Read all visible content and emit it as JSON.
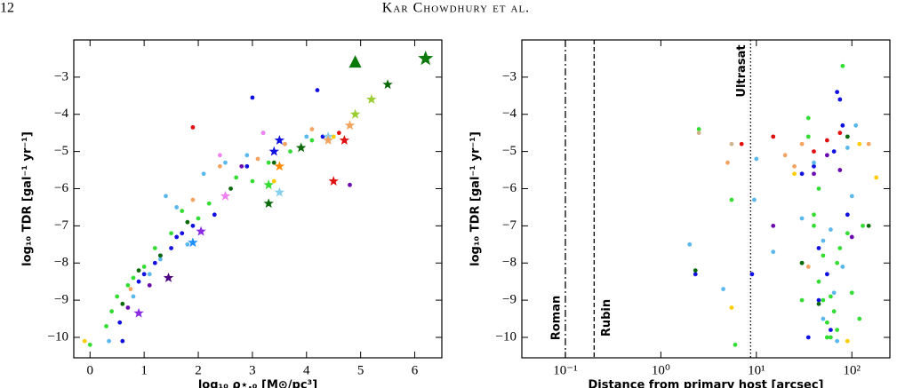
{
  "page": {
    "number": "12",
    "running_head": "Kar Chowdhury et al."
  },
  "chart_data": [
    {
      "type": "scatter",
      "xlabel": "log₁₀ ρ⋆,₀ [M⊙/pc³]",
      "ylabel": "log₁₀ TDR [gal⁻¹ yr⁻¹]",
      "xlim": [
        -0.3,
        6.5
      ],
      "ylim": [
        -10.55,
        -2.0
      ],
      "xticks": [
        0,
        1,
        2,
        3,
        4,
        5,
        6
      ],
      "yticks": [
        {
          "value": -10,
          "label": "−10"
        },
        {
          "value": -9,
          "label": "−9"
        },
        {
          "value": -8,
          "label": "−8"
        },
        {
          "value": -7,
          "label": "−7"
        },
        {
          "value": -6,
          "label": "−6"
        },
        {
          "value": -5,
          "label": "−5"
        },
        {
          "value": -4,
          "label": "−4"
        },
        {
          "value": -3,
          "label": "−3"
        }
      ],
      "series": [
        {
          "color": "#1010e0",
          "marker": "dot",
          "x": [
            0.55,
            0.6,
            0.9,
            1.0,
            1.2,
            1.3,
            1.5,
            1.6,
            1.7,
            1.9,
            2.3,
            2.9,
            3.0,
            4.2,
            4.3
          ],
          "values": [
            -9.6,
            -10.1,
            -8.5,
            -8.3,
            -8.0,
            -7.8,
            -7.6,
            -7.3,
            -7.2,
            -7.0,
            -6.7,
            -5.4,
            -3.55,
            -3.35,
            -4.6
          ]
        },
        {
          "color": "#5bb8ec",
          "marker": "dot",
          "x": [
            0.35,
            0.8,
            1.1,
            1.3,
            1.4,
            1.6,
            1.8,
            2.1,
            2.5,
            2.9,
            3.2,
            3.6,
            4.0
          ],
          "values": [
            -10.1,
            -8.9,
            -8.3,
            -7.9,
            -6.2,
            -6.5,
            -7.5,
            -5.6,
            -5.3,
            -5.1,
            -4.5,
            -4.8,
            -4.6
          ]
        },
        {
          "color": "#33dd33",
          "marker": "dot",
          "x": [
            0.0,
            0.3,
            0.4,
            0.5,
            0.7,
            0.8,
            1.0,
            1.2,
            1.5,
            1.7,
            2.0,
            2.2,
            2.7,
            3.0,
            3.3,
            3.7,
            4.1
          ],
          "values": [
            -10.2,
            -9.7,
            -9.3,
            -8.9,
            -8.6,
            -8.4,
            -8.1,
            -7.6,
            -7.2,
            -6.6,
            -6.8,
            -6.4,
            -5.7,
            -5.8,
            -5.3,
            -5.0,
            -4.7
          ]
        },
        {
          "color": "#0a6a0a",
          "marker": "dot",
          "x": [
            0.6,
            0.9,
            1.3,
            1.8,
            2.6,
            3.4
          ],
          "values": [
            -9.1,
            -8.2,
            -7.8,
            -6.9,
            -6.0,
            -5.3
          ]
        },
        {
          "color": "#6a0ab0",
          "marker": "dot",
          "x": [
            0.7,
            1.1,
            2.8,
            4.8
          ],
          "values": [
            -9.2,
            -8.6,
            -5.4,
            -5.9
          ]
        },
        {
          "color": "#f4a460",
          "marker": "dot",
          "x": [
            0.75,
            1.9,
            2.4,
            3.1,
            3.6,
            4.1
          ],
          "values": [
            -8.7,
            -6.3,
            -5.4,
            -5.2,
            -4.8,
            -4.4
          ]
        },
        {
          "color": "#ffcc00",
          "marker": "dot",
          "x": [
            -0.1,
            3.4,
            4.5
          ],
          "values": [
            -10.1,
            -5.8,
            -4.6
          ]
        },
        {
          "color": "#e01010",
          "marker": "dot",
          "x": [
            1.9,
            4.6
          ],
          "values": [
            -4.35,
            -4.5
          ]
        },
        {
          "color": "#ee82ee",
          "marker": "dot",
          "x": [
            3.2,
            2.4
          ],
          "values": [
            -4.5,
            -5.1
          ]
        },
        {
          "marker": "star",
          "colors": [
            "#8a2be2",
            "#4b0082",
            "#8a2be2",
            "#1e90ff",
            "#ee82ee",
            "#0a6a0a",
            "#33dd33",
            "#87ceeb",
            "#ff8c00",
            "#1010e0",
            "#1010e0",
            "#0a6a0a",
            "#87ceeb",
            "#f4a460",
            "#e01010",
            "#e01010",
            "#f4a460",
            "#9acd32",
            "#9acd32",
            "#0a6a0a"
          ],
          "x": [
            0.9,
            1.45,
            2.05,
            1.9,
            2.5,
            3.3,
            3.3,
            3.5,
            3.5,
            3.5,
            3.4,
            3.9,
            4.4,
            4.4,
            4.5,
            4.7,
            4.8,
            4.9,
            5.2,
            5.5
          ],
          "values": [
            -9.35,
            -8.4,
            -7.15,
            -7.45,
            -6.2,
            -6.4,
            -5.9,
            -6.1,
            -5.4,
            -4.7,
            -5.0,
            -4.9,
            -4.6,
            -4.7,
            -5.8,
            -4.7,
            -4.3,
            -4.0,
            -3.6,
            -3.2
          ]
        },
        {
          "color": "#0a7a0a",
          "marker": "big-star",
          "x": [
            6.2
          ],
          "values": [
            -2.5
          ]
        },
        {
          "color": "#0a7a0a",
          "marker": "triangle",
          "x": [
            4.9
          ],
          "values": [
            -2.6
          ]
        }
      ]
    },
    {
      "type": "scatter",
      "xscale": "log",
      "xlabel": "Distance from primary host [arcsec]",
      "ylabel": "log₁₀ TDR [gal⁻¹ yr⁻¹]",
      "xlim": [
        0.035,
        250
      ],
      "ylim": [
        -10.55,
        -2.0
      ],
      "xticks": [
        {
          "value": 0.1,
          "label": "10⁻¹"
        },
        {
          "value": 1,
          "label": "10⁰"
        },
        {
          "value": 10,
          "label": "10¹"
        },
        {
          "value": 100,
          "label": "10²"
        }
      ],
      "yticks": [
        {
          "value": -10,
          "label": "−10"
        },
        {
          "value": -9,
          "label": "−9"
        },
        {
          "value": -8,
          "label": "−8"
        },
        {
          "value": -7,
          "label": "−7"
        },
        {
          "value": -6,
          "label": "−6"
        },
        {
          "value": -5,
          "label": "−5"
        },
        {
          "value": -4,
          "label": "−4"
        },
        {
          "value": -3,
          "label": "−3"
        }
      ],
      "vlines": [
        {
          "x": 0.1,
          "style": "dashdot",
          "label": "Roman"
        },
        {
          "x": 0.2,
          "style": "dashed",
          "label": "Rubin"
        },
        {
          "x": 8.7,
          "style": "dotted",
          "label": "Ultrasat"
        }
      ],
      "series": [
        {
          "color": "#33dd33",
          "marker": "dot",
          "x": [
            2.5,
            5.5,
            6,
            30,
            35,
            40,
            45,
            50,
            55,
            60,
            65,
            70,
            80,
            90,
            100,
            40,
            50,
            70,
            35,
            45,
            60,
            120,
            130,
            30,
            55,
            75
          ],
          "values": [
            -4.4,
            -6.3,
            -10.2,
            -8.0,
            -4.1,
            -7.0,
            -8.5,
            -9.0,
            -9.6,
            -10.0,
            -9.3,
            -8.0,
            -2.7,
            -7.2,
            -8.8,
            -6.7,
            -7.8,
            -9.8,
            -4.6,
            -6.0,
            -8.9,
            -9.5,
            -7.0,
            -9.0,
            -10.0,
            -7.6
          ]
        },
        {
          "color": "#1010e0",
          "marker": "dot",
          "x": [
            2.3,
            9,
            30,
            40,
            45,
            55,
            70,
            75,
            80,
            60,
            90,
            45,
            35,
            65
          ],
          "values": [
            -8.3,
            -8.3,
            -5.6,
            -5.4,
            -7.6,
            -8.3,
            -3.4,
            -3.6,
            -4.3,
            -9.8,
            -6.7,
            -9.0,
            -10.0,
            -5.0
          ]
        },
        {
          "color": "#5bb8ec",
          "marker": "dot",
          "x": [
            2,
            4.5,
            9.5,
            10,
            15,
            30,
            40,
            50,
            60,
            70,
            80,
            90,
            100,
            110,
            65,
            50
          ],
          "values": [
            -7.5,
            -8.7,
            -6.3,
            -5.2,
            -7.7,
            -6.8,
            -5.3,
            -9.5,
            -7.1,
            -10.1,
            -8.1,
            -4.9,
            -6.2,
            -4.3,
            -8.8,
            -7.4
          ]
        },
        {
          "color": "#f4a460",
          "marker": "dot",
          "x": [
            5,
            20,
            25,
            30,
            150,
            35
          ],
          "values": [
            -5.3,
            -5.1,
            -5.4,
            -4.8,
            -4.8,
            -8.1
          ]
        },
        {
          "color": "#ffcc00",
          "marker": "dot",
          "x": [
            5.5,
            25,
            120,
            180,
            90
          ],
          "values": [
            -9.2,
            -5.6,
            -4.8,
            -5.7,
            -10.1
          ]
        },
        {
          "color": "#e01010",
          "marker": "dot",
          "x": [
            7,
            15,
            40,
            55,
            75
          ],
          "values": [
            -4.8,
            -4.6,
            -5.0,
            -4.7,
            -4.5
          ]
        },
        {
          "color": "#6a0ab0",
          "marker": "dot",
          "x": [
            15,
            40,
            55,
            75,
            100
          ],
          "values": [
            -7.0,
            -5.6,
            -5.1,
            -5.5,
            -7.3
          ]
        },
        {
          "color": "#0a6a0a",
          "marker": "dot",
          "x": [
            2.3,
            30,
            45,
            90,
            150
          ],
          "values": [
            -8.2,
            -8.0,
            -9.1,
            -4.6,
            -7.0
          ]
        },
        {
          "color": "#d2b48c",
          "marker": "dot",
          "x": [
            2.5,
            5.5
          ],
          "values": [
            -4.5,
            -4.8
          ]
        }
      ]
    }
  ]
}
